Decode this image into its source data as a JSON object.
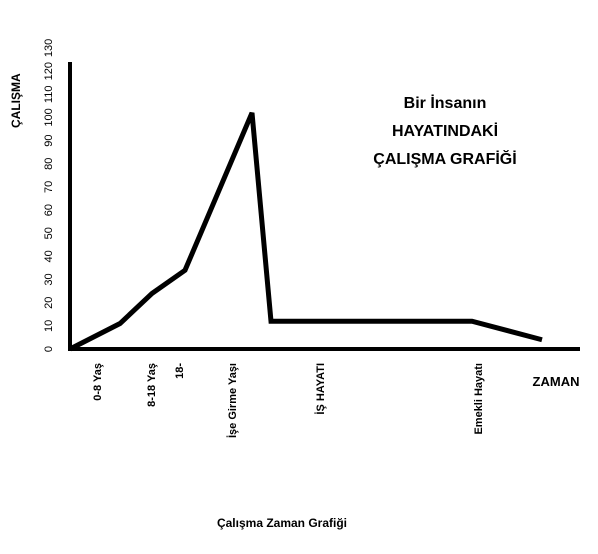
{
  "chart_data": {
    "type": "line",
    "title_lines": [
      "Bir İnsanın",
      "HAYATINDAKİ",
      "ÇALIŞMA GRAFİĞİ"
    ],
    "xlabel": "ZAMAN",
    "ylabel": "ÇALIŞMA",
    "footer": "Çalışma Zaman Grafiği",
    "y_ticks": [
      "0",
      "10",
      "20",
      "30",
      "40",
      "50",
      "60",
      "70",
      "80",
      "90",
      "100",
      "110",
      "120",
      "130"
    ],
    "ylim": [
      0,
      130
    ],
    "x_categories": [
      "0-8 Yaş",
      "8-18 Yaş",
      "18-",
      "İşe Girme Yaşı",
      "İŞ HAYATI",
      "Emekli Hayatı"
    ],
    "points": [
      {
        "stage": "start",
        "y": 0
      },
      {
        "stage": "0-8 Yaş",
        "y": 11
      },
      {
        "stage": "8-18 Yaş",
        "y": 24
      },
      {
        "stage": "18-",
        "y": 34
      },
      {
        "stage": "İşe Girme Yaşı",
        "y": 102
      },
      {
        "stage": "İŞ HAYATI (start)",
        "y": 12
      },
      {
        "stage": "Emekli Hayatı",
        "y": 12
      },
      {
        "stage": "end",
        "y": 4
      }
    ],
    "grid": false,
    "legend": "none"
  }
}
